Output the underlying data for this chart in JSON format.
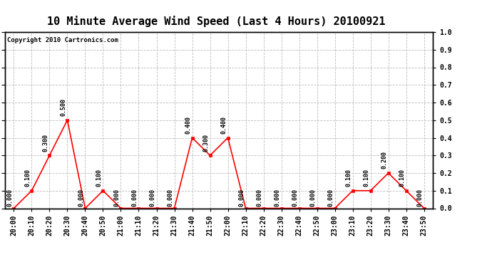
{
  "title": "10 Minute Average Wind Speed (Last 4 Hours) 20100921",
  "copyright_text": "Copyright 2010 Cartronics.com",
  "x_labels": [
    "20:00",
    "20:10",
    "20:20",
    "20:30",
    "20:40",
    "20:50",
    "21:00",
    "21:10",
    "21:20",
    "21:30",
    "21:40",
    "21:50",
    "22:00",
    "22:10",
    "22:20",
    "22:30",
    "22:40",
    "22:50",
    "23:00",
    "23:10",
    "23:20",
    "23:30",
    "23:40",
    "23:50"
  ],
  "y_values": [
    0.0,
    0.1,
    0.3,
    0.5,
    0.0,
    0.1,
    0.0,
    0.0,
    0.0,
    0.0,
    0.4,
    0.3,
    0.4,
    0.0,
    0.0,
    0.0,
    0.0,
    0.0,
    0.0,
    0.1,
    0.1,
    0.2,
    0.1,
    0.0
  ],
  "line_color": "#ff0000",
  "marker_color": "#ff0000",
  "background_color": "#ffffff",
  "grid_color": "#bbbbbb",
  "ylim": [
    0.0,
    1.0
  ],
  "yticks": [
    0.0,
    0.1,
    0.2,
    0.3,
    0.4,
    0.5,
    0.6,
    0.7,
    0.8,
    0.9,
    1.0
  ],
  "title_fontsize": 11,
  "annotation_fontsize": 6,
  "label_fontsize": 7,
  "copyright_fontsize": 6.5
}
